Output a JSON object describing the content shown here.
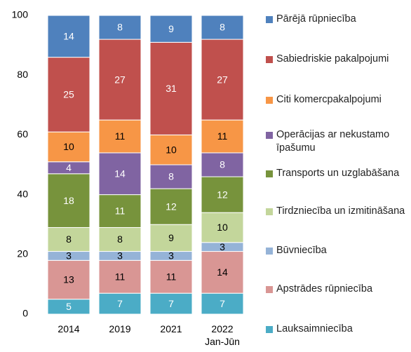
{
  "chart_data": {
    "type": "stacked_bar",
    "categories": [
      "2014",
      "2019",
      "2021",
      "2022 Jan-Jūn"
    ],
    "ylim": [
      0,
      100
    ],
    "yticks": [
      0,
      20,
      40,
      60,
      80,
      100
    ],
    "series": [
      {
        "name": "Lauksaimniecība",
        "color": "#4bacc6",
        "values": [
          5,
          7,
          7,
          7
        ]
      },
      {
        "name": "Apstrādes rūpniecība",
        "color": "#d99694",
        "values": [
          13,
          11,
          11,
          14
        ]
      },
      {
        "name": "Būvniecība",
        "color": "#95b3d7",
        "values": [
          3,
          3,
          3,
          3
        ]
      },
      {
        "name": "Tirdzniecība un izmitināšana",
        "color": "#c3d69b",
        "values": [
          8,
          8,
          9,
          10
        ]
      },
      {
        "name": "Transports un uzglabāšana",
        "color": "#77933c",
        "values": [
          18,
          11,
          12,
          12
        ]
      },
      {
        "name": "Operācijas ar nekustamo īpašumu",
        "color": "#8064a2",
        "values": [
          4,
          14,
          8,
          8
        ]
      },
      {
        "name": "Citi komercpakalpojumi",
        "color": "#f79646",
        "values": [
          10,
          11,
          10,
          11
        ]
      },
      {
        "name": "Sabiedriskie pakalpojumi",
        "color": "#c0504d",
        "values": [
          25,
          27,
          31,
          27
        ]
      },
      {
        "name": "Pārējā rūpniecība",
        "color": "#4f81bd",
        "values": [
          14,
          8,
          9,
          8
        ]
      }
    ]
  }
}
